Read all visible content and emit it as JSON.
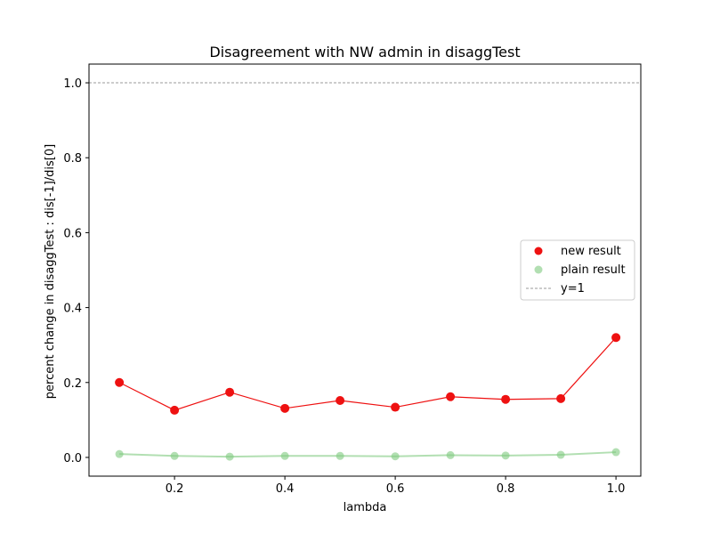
{
  "chart_data": {
    "type": "line",
    "title": "Disagreement with NW admin in disaggTest",
    "xlabel": "lambda",
    "ylabel": "percent change in disaggTest : dis[-1]/dis[0]",
    "xlim": [
      0.045,
      1.045
    ],
    "ylim": [
      -0.05,
      1.05
    ],
    "x": [
      0.1,
      0.2,
      0.3,
      0.4,
      0.5,
      0.6,
      0.7,
      0.8,
      0.9,
      1.0
    ],
    "xticks": [
      0.2,
      0.4,
      0.6,
      0.8,
      1.0
    ],
    "xtick_labels": [
      "0.2",
      "0.4",
      "0.6",
      "0.8",
      "1.0"
    ],
    "yticks": [
      0.0,
      0.2,
      0.4,
      0.6,
      0.8,
      1.0
    ],
    "ytick_labels": [
      "0.0",
      "0.2",
      "0.4",
      "0.6",
      "0.8",
      "1.0"
    ],
    "series": [
      {
        "name": "new result",
        "color": "#ee1111",
        "opacity": 1.0,
        "values": [
          0.2,
          0.126,
          0.174,
          0.131,
          0.152,
          0.134,
          0.162,
          0.155,
          0.157,
          0.32
        ]
      },
      {
        "name": "plain result",
        "color": "#7fc97f",
        "opacity": 0.6,
        "values": [
          0.009,
          0.004,
          0.002,
          0.004,
          0.004,
          0.003,
          0.006,
          0.005,
          0.007,
          0.014
        ]
      }
    ],
    "reference_line": {
      "name": "y=1",
      "y": 1.0,
      "color": "#999999",
      "style": "dashed"
    },
    "legend": {
      "position": "center-right",
      "entries": [
        "new result",
        "plain result",
        "y=1"
      ]
    }
  }
}
